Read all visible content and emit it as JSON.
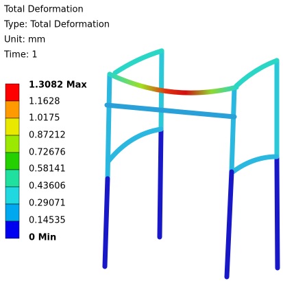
{
  "header": {
    "lines": [
      "Total Deformation",
      "Type: Total Deformation",
      "Unit: mm",
      "Time: 1"
    ]
  },
  "legend": {
    "labels": [
      "1.3082 Max",
      "1.1628",
      "1.0175",
      "0.87212",
      "0.72676",
      "0.58141",
      "0.43606",
      "0.29071",
      "0.14535",
      "0 Min"
    ]
  }
}
